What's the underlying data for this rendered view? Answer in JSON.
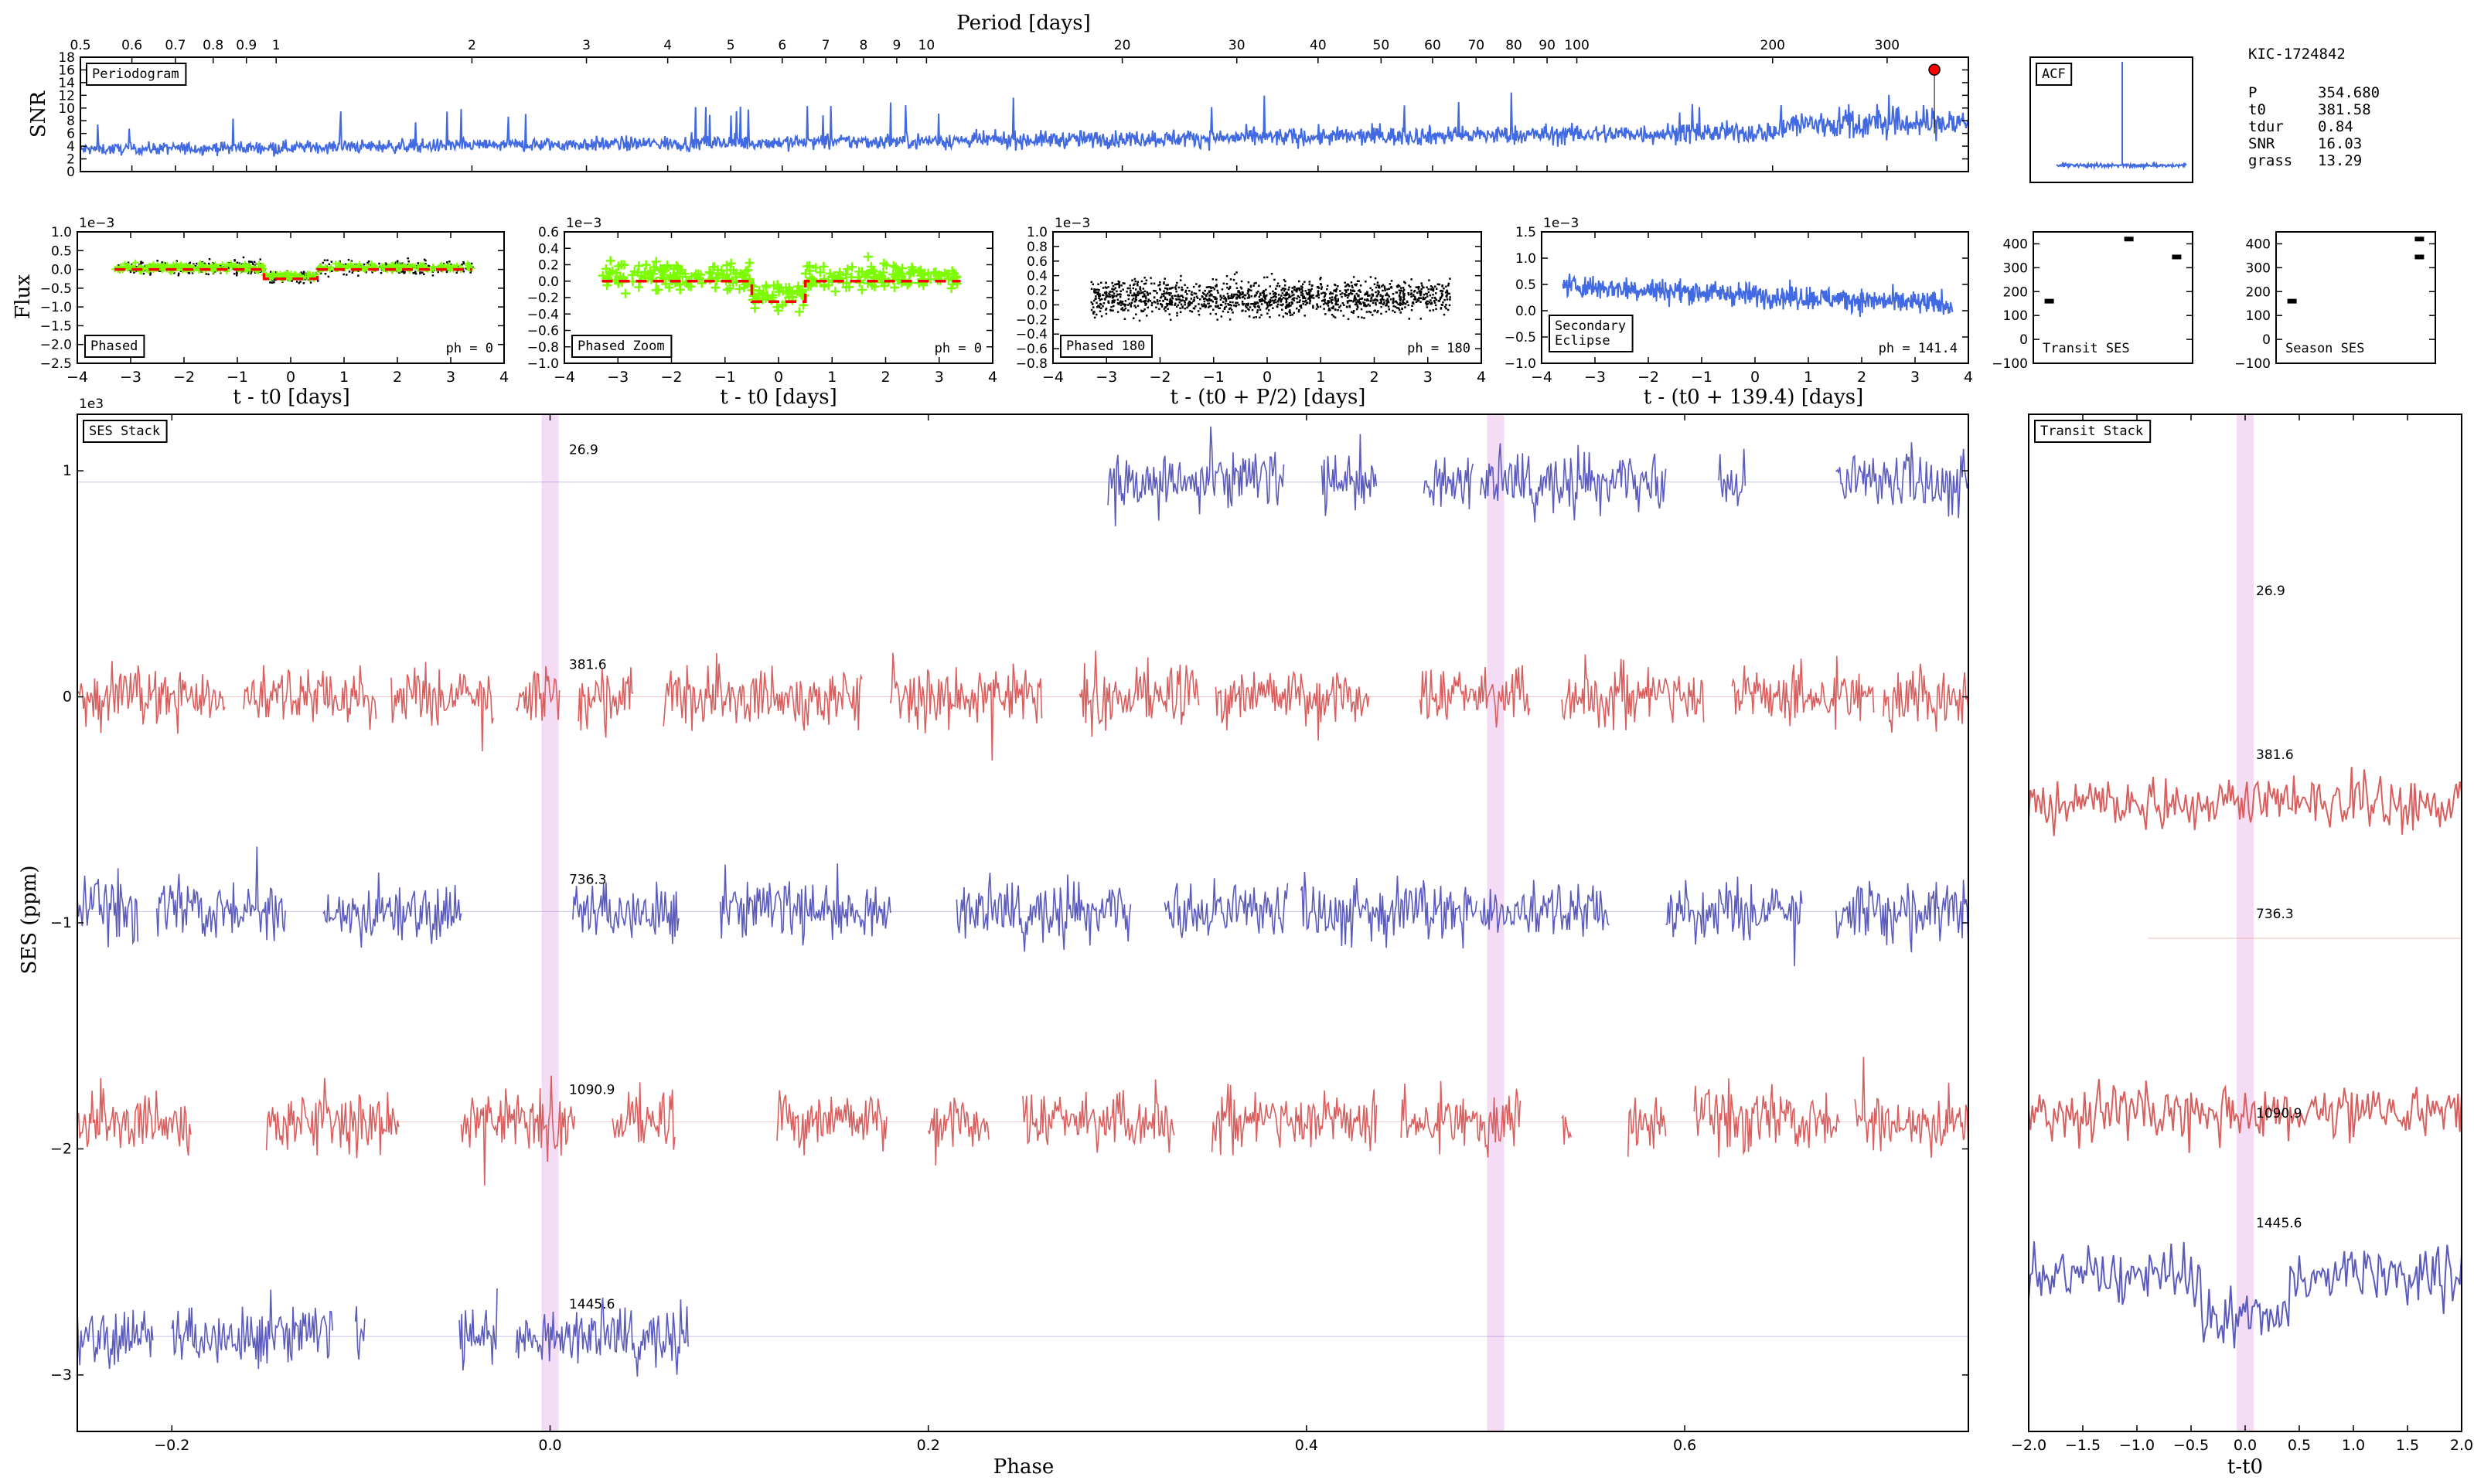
{
  "chart_data": [
    {
      "id": "periodogram",
      "type": "line",
      "tag": "Periodogram",
      "xlabel": "Period [days]",
      "ylabel": "SNR",
      "xscale": "log",
      "xlim": [
        0.5,
        400
      ],
      "ylim": [
        0,
        18
      ],
      "xticks": [
        "0.5",
        "0.6",
        "0.7",
        "0.8",
        "0.9",
        "1",
        "2",
        "3",
        "4",
        "5",
        "6",
        "7",
        "8",
        "9",
        "10",
        "20",
        "30",
        "40",
        "50",
        "60",
        "70",
        "80",
        "90",
        "100",
        "200",
        "300"
      ],
      "yticks": [
        "0",
        "2",
        "4",
        "6",
        "8",
        "10",
        "12",
        "14",
        "16",
        "18"
      ],
      "baseline_start": 3.5,
      "baseline_end": 6.5,
      "peak": {
        "x": 354.68,
        "y": 16.03
      },
      "color": "#4169e1"
    },
    {
      "id": "acf",
      "type": "line",
      "tag": "ACF",
      "peak": {
        "x": 0.5,
        "y": 1.0
      },
      "color": "#4169e1"
    },
    {
      "id": "phased",
      "type": "scatter",
      "tag": "Phased",
      "xlabel": "t - t0 [days]",
      "ylabel": "Flux",
      "yexp": "1e−3",
      "annotation": "ph = 0",
      "xlim": [
        -4,
        4
      ],
      "ylim": [
        -2.5,
        1.0
      ],
      "xticks": [
        "−4",
        "−3",
        "−2",
        "−1",
        "0",
        "1",
        "2",
        "3",
        "4"
      ],
      "yticks": [
        "1.0",
        "0.5",
        "0.0",
        "−0.5",
        "−1.0",
        "−1.5",
        "−2.0",
        "−2.5"
      ],
      "model_depth": -0.25,
      "colors": {
        "points": "#000000",
        "binned": "#7cfc00",
        "model": "#ff0000"
      }
    },
    {
      "id": "phased_zoom",
      "type": "scatter",
      "tag": "Phased Zoom",
      "xlabel": "t - t0 [days]",
      "yexp": "1e−3",
      "annotation": "ph = 0",
      "xlim": [
        -4,
        4
      ],
      "ylim": [
        -1.0,
        0.6
      ],
      "xticks": [
        "−4",
        "−3",
        "−2",
        "−1",
        "0",
        "1",
        "2",
        "3",
        "4"
      ],
      "yticks": [
        "0.6",
        "0.4",
        "0.2",
        "0.0",
        "−0.2",
        "−0.4",
        "−0.6",
        "−0.8",
        "−1.0"
      ],
      "model_depth": -0.25,
      "colors": {
        "binned": "#7cfc00",
        "model": "#ff0000"
      }
    },
    {
      "id": "phased_180",
      "type": "scatter",
      "tag": "Phased 180",
      "xlabel": "t - (t0 + P/2) [days]",
      "yexp": "1e−3",
      "annotation": "ph = 180",
      "xlim": [
        -4,
        4
      ],
      "ylim": [
        -0.8,
        1.0
      ],
      "xticks": [
        "−4",
        "−3",
        "−2",
        "−1",
        "0",
        "1",
        "2",
        "3",
        "4"
      ],
      "yticks": [
        "1.0",
        "0.8",
        "0.6",
        "0.4",
        "0.2",
        "0.0",
        "−0.2",
        "−0.4",
        "−0.6",
        "−0.8"
      ],
      "colors": {
        "points": "#000000"
      }
    },
    {
      "id": "secondary",
      "type": "line",
      "tag_lines": [
        "Secondary",
        "Eclipse"
      ],
      "xlabel": "t - (t0 + 139.4) [days]",
      "yexp": "1e−3",
      "annotation": "ph = 141.4",
      "xlim": [
        -4,
        4
      ],
      "ylim": [
        -1.0,
        1.5
      ],
      "xticks": [
        "−4",
        "−3",
        "−2",
        "−1",
        "0",
        "1",
        "2",
        "3",
        "4"
      ],
      "yticks": [
        "1.5",
        "1.0",
        "0.5",
        "0.0",
        "−0.5",
        "−1.0"
      ],
      "color": "#4169e1"
    },
    {
      "id": "transit_ses",
      "type": "scatter",
      "tag": "Transit SES",
      "ylim": [
        -100,
        450
      ],
      "yticks": [
        "400",
        "300",
        "200",
        "100",
        "0",
        "−100"
      ],
      "points": [
        {
          "x": 0.1,
          "y": 160
        },
        {
          "x": 0.6,
          "y": 420
        },
        {
          "x": 0.9,
          "y": 345
        }
      ]
    },
    {
      "id": "season_ses",
      "type": "scatter",
      "tag": "Season SES",
      "ylim": [
        -100,
        450
      ],
      "yticks": [
        "400",
        "300",
        "200",
        "100",
        "0",
        "−100"
      ],
      "points": [
        {
          "x": 0.1,
          "y": 160
        },
        {
          "x": 0.9,
          "y": 420
        },
        {
          "x": 0.9,
          "y": 345
        }
      ]
    },
    {
      "id": "ses_stack",
      "type": "line",
      "tag": "SES Stack",
      "xlabel": "Phase",
      "ylabel": "SES (ppm)",
      "yexp": "1e3",
      "xlim": [
        -0.25,
        0.75
      ],
      "ylim": [
        -3.25,
        1.25
      ],
      "xticks": [
        "−0.2",
        "0.0",
        "0.2",
        "0.4",
        "0.6"
      ],
      "yticks": [
        "1",
        "0",
        "−1",
        "−2",
        "−3"
      ],
      "highlight_phases": [
        0.0,
        0.5
      ],
      "rows": [
        {
          "label": "26.9",
          "offset": 0.95,
          "color": "#5b5bbd",
          "segments": [
            [
              0.295,
              0.388
            ],
            [
              0.408,
              0.437
            ],
            [
              0.462,
              0.488
            ],
            [
              0.492,
              0.59
            ],
            [
              0.618,
              0.632
            ],
            [
              0.68,
              0.75
            ]
          ]
        },
        {
          "label": "381.6",
          "offset": 0.0,
          "color": "#d95f5f",
          "segments": [
            [
              -0.25,
              -0.172
            ],
            [
              -0.162,
              -0.092
            ],
            [
              -0.084,
              -0.03
            ],
            [
              -0.018,
              0.005
            ],
            [
              0.015,
              0.044
            ],
            [
              0.06,
              0.165
            ],
            [
              0.18,
              0.26
            ],
            [
              0.28,
              0.343
            ],
            [
              0.352,
              0.433
            ],
            [
              0.46,
              0.518
            ],
            [
              0.535,
              0.61
            ],
            [
              0.625,
              0.7
            ],
            [
              0.705,
              0.75
            ]
          ]
        },
        {
          "label": "736.3",
          "offset": -0.95,
          "color": "#5b5bbd",
          "segments": [
            [
              -0.25,
              -0.218
            ],
            [
              -0.208,
              -0.14
            ],
            [
              -0.12,
              -0.047
            ],
            [
              0.012,
              0.068
            ],
            [
              0.09,
              0.18
            ],
            [
              0.215,
              0.307
            ],
            [
              0.325,
              0.39
            ],
            [
              0.397,
              0.49
            ],
            [
              0.492,
              0.56
            ],
            [
              0.59,
              0.662
            ],
            [
              0.68,
              0.75
            ]
          ]
        },
        {
          "label": "1090.9",
          "offset": -1.88,
          "color": "#d95f5f",
          "segments": [
            [
              -0.25,
              -0.19
            ],
            [
              -0.15,
              -0.08
            ],
            [
              -0.047,
              0.013
            ],
            [
              0.033,
              0.066
            ],
            [
              0.12,
              0.178
            ],
            [
              0.2,
              0.232
            ],
            [
              0.25,
              0.33
            ],
            [
              0.35,
              0.437
            ],
            [
              0.45,
              0.513
            ],
            [
              0.535,
              0.54
            ],
            [
              0.57,
              0.59
            ],
            [
              0.605,
              0.682
            ],
            [
              0.69,
              0.75
            ]
          ]
        },
        {
          "label": "1445.6",
          "offset": -2.83,
          "color": "#5b5bbd",
          "segments": [
            [
              -0.25,
              -0.21
            ],
            [
              -0.2,
              -0.115
            ],
            [
              -0.103,
              -0.098
            ],
            [
              -0.048,
              -0.028
            ],
            [
              -0.018,
              0.073
            ]
          ]
        }
      ]
    },
    {
      "id": "transit_stack",
      "type": "line",
      "tag": "Transit Stack",
      "xlabel": "t-t0",
      "xlim": [
        -2.0,
        2.0
      ],
      "xticks": [
        "−2.0",
        "−1.5",
        "−1.0",
        "−0.5",
        "0.0",
        "0.5",
        "1.0",
        "1.5",
        "2.0"
      ],
      "rows": [
        {
          "label": "26.9",
          "color": "#5b5bbd"
        },
        {
          "label": "381.6",
          "color": "#d95f5f"
        },
        {
          "label": "736.3",
          "color": "#5b5bbd"
        },
        {
          "label": "1090.9",
          "color": "#d95f5f"
        },
        {
          "label": "1445.6",
          "color": "#5b5bbd"
        }
      ]
    }
  ],
  "summary": {
    "title": "KIC-1724842",
    "rows": [
      {
        "key": "P",
        "value": "354.680"
      },
      {
        "key": "t0",
        "value": "381.58"
      },
      {
        "key": "tdur",
        "value": "0.84"
      },
      {
        "key": "SNR",
        "value": "16.03"
      },
      {
        "key": "grass",
        "value": "13.29"
      }
    ]
  }
}
